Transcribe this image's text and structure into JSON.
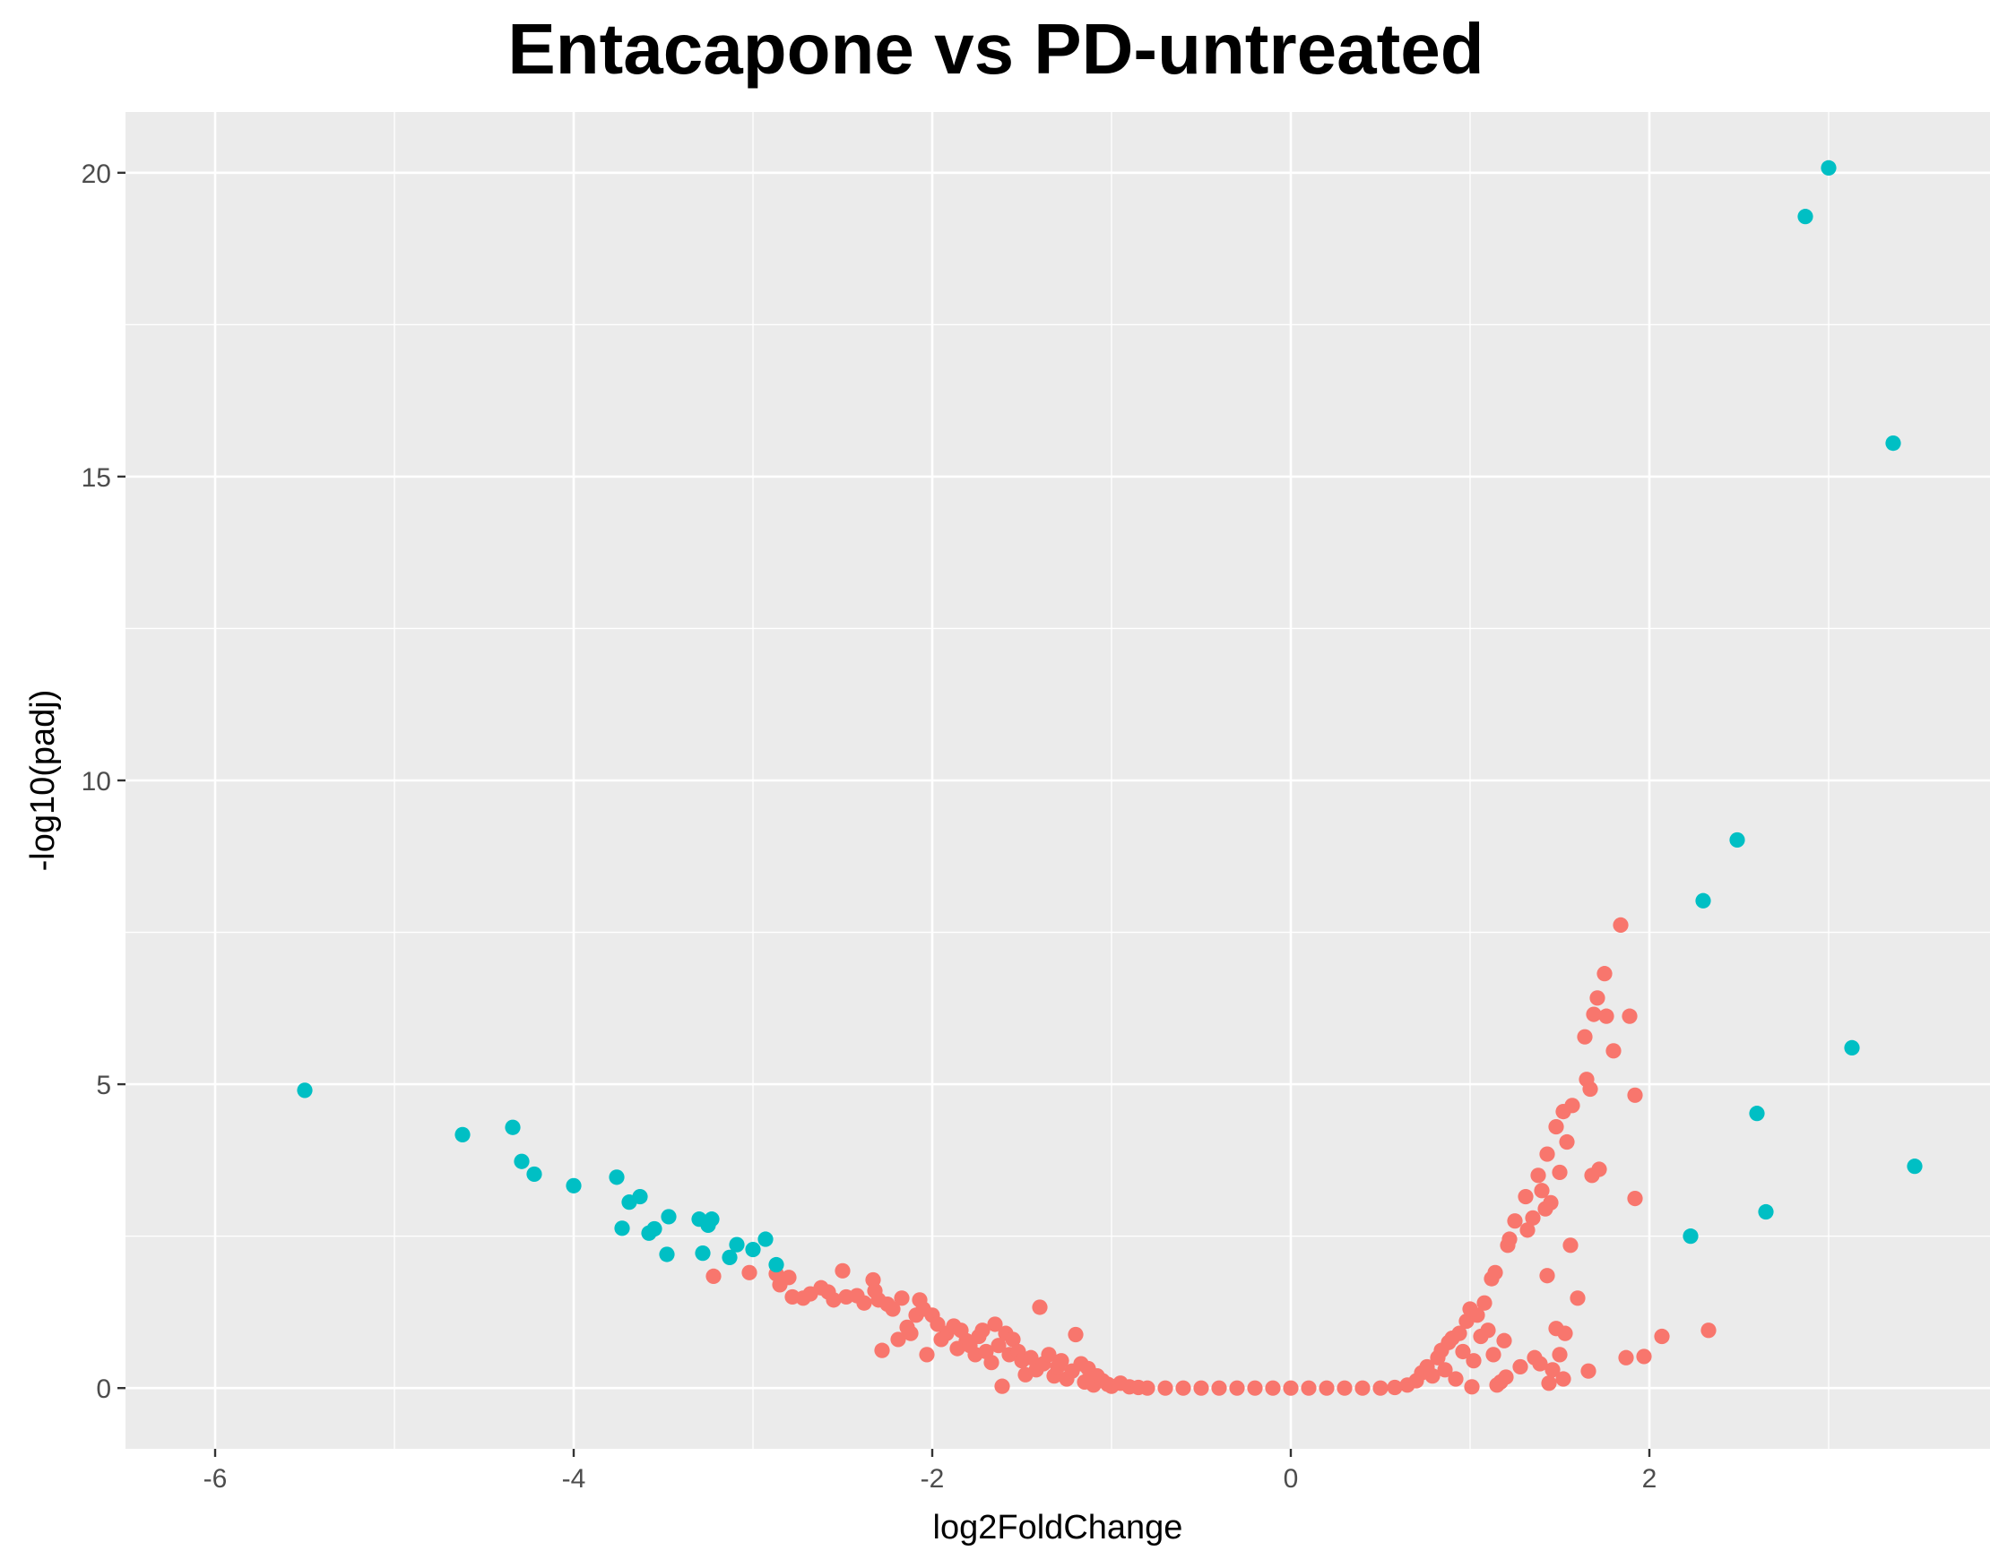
{
  "chart_data": {
    "type": "scatter",
    "title": "Entacapone vs PD-untreated",
    "xlabel": "log2FoldChange",
    "ylabel": "-log10(padj)",
    "xlim": [
      -6.5,
      3.9
    ],
    "ylim": [
      -1.0,
      21.0
    ],
    "xticks": [
      -6,
      -4,
      -2,
      0,
      2
    ],
    "xtick_labels": [
      "-6",
      "-4",
      "-2",
      "0",
      "2"
    ],
    "yticks": [
      0,
      5,
      10,
      15,
      20
    ],
    "ytick_labels": [
      "0",
      "5",
      "10",
      "15",
      "20"
    ],
    "grid": true,
    "legend": "none",
    "colors": {
      "panel": "#ebebeb",
      "grid": "#ffffff",
      "red": "#f8766d",
      "teal": "#00bfc4"
    },
    "series": [
      {
        "color": "#00bfc4",
        "points": [
          [
            -5.5,
            4.9
          ],
          [
            -4.62,
            4.17
          ],
          [
            -4.34,
            4.29
          ],
          [
            -4.29,
            3.73
          ],
          [
            -4.22,
            3.52
          ],
          [
            -4.0,
            3.33
          ],
          [
            -3.76,
            3.47
          ],
          [
            -3.73,
            2.63
          ],
          [
            -3.69,
            3.06
          ],
          [
            -3.63,
            3.15
          ],
          [
            -3.58,
            2.55
          ],
          [
            -3.55,
            2.62
          ],
          [
            -3.48,
            2.2
          ],
          [
            -3.47,
            2.82
          ],
          [
            -3.3,
            2.78
          ],
          [
            -3.28,
            2.22
          ],
          [
            -3.25,
            2.68
          ],
          [
            -3.23,
            2.78
          ],
          [
            -3.13,
            2.15
          ],
          [
            -3.09,
            2.36
          ],
          [
            -3.0,
            2.28
          ],
          [
            -2.93,
            2.45
          ],
          [
            -2.87,
            2.03
          ],
          [
            2.23,
            2.5
          ],
          [
            2.3,
            8.02
          ],
          [
            2.49,
            9.02
          ],
          [
            2.6,
            4.52
          ],
          [
            2.65,
            2.9
          ],
          [
            2.87,
            19.28
          ],
          [
            3.0,
            20.08
          ],
          [
            3.13,
            5.6
          ],
          [
            3.36,
            15.55
          ],
          [
            3.48,
            3.65
          ]
        ]
      },
      {
        "color": "#f8766d",
        "points": [
          [
            -3.22,
            1.84
          ],
          [
            -3.02,
            1.9
          ],
          [
            -2.87,
            1.88
          ],
          [
            -2.85,
            1.7
          ],
          [
            -2.8,
            1.82
          ],
          [
            -2.78,
            1.5
          ],
          [
            -2.72,
            1.48
          ],
          [
            -2.68,
            1.55
          ],
          [
            -2.62,
            1.65
          ],
          [
            -2.58,
            1.58
          ],
          [
            -2.55,
            1.45
          ],
          [
            -2.5,
            1.93
          ],
          [
            -2.48,
            1.5
          ],
          [
            -2.42,
            1.52
          ],
          [
            -2.38,
            1.4
          ],
          [
            -2.33,
            1.78
          ],
          [
            -2.32,
            1.6
          ],
          [
            -2.3,
            1.45
          ],
          [
            -2.28,
            0.62
          ],
          [
            -2.25,
            1.38
          ],
          [
            -2.22,
            1.3
          ],
          [
            -2.19,
            0.8
          ],
          [
            -2.17,
            1.48
          ],
          [
            -2.14,
            1.0
          ],
          [
            -2.12,
            0.9
          ],
          [
            -2.09,
            1.2
          ],
          [
            -2.07,
            1.45
          ],
          [
            -2.05,
            1.3
          ],
          [
            -2.03,
            0.55
          ],
          [
            -2.0,
            1.2
          ],
          [
            -1.97,
            1.05
          ],
          [
            -1.95,
            0.8
          ],
          [
            -1.92,
            0.9
          ],
          [
            -1.88,
            1.02
          ],
          [
            -1.86,
            0.65
          ],
          [
            -1.84,
            0.95
          ],
          [
            -1.81,
            0.78
          ],
          [
            -1.79,
            0.7
          ],
          [
            -1.76,
            0.55
          ],
          [
            -1.74,
            0.85
          ],
          [
            -1.72,
            0.95
          ],
          [
            -1.7,
            0.6
          ],
          [
            -1.67,
            0.42
          ],
          [
            -1.65,
            1.05
          ],
          [
            -1.63,
            0.7
          ],
          [
            -1.61,
            0.03
          ],
          [
            -1.59,
            0.9
          ],
          [
            -1.57,
            0.55
          ],
          [
            -1.55,
            0.8
          ],
          [
            -1.52,
            0.6
          ],
          [
            -1.5,
            0.45
          ],
          [
            -1.48,
            0.22
          ],
          [
            -1.45,
            0.5
          ],
          [
            -1.42,
            0.3
          ],
          [
            -1.4,
            1.33
          ],
          [
            -1.38,
            0.4
          ],
          [
            -1.35,
            0.55
          ],
          [
            -1.32,
            0.2
          ],
          [
            -1.3,
            0.35
          ],
          [
            -1.28,
            0.45
          ],
          [
            -1.25,
            0.15
          ],
          [
            -1.22,
            0.28
          ],
          [
            -1.2,
            0.88
          ],
          [
            -1.17,
            0.4
          ],
          [
            -1.15,
            0.1
          ],
          [
            -1.13,
            0.32
          ],
          [
            -1.1,
            0.05
          ],
          [
            -1.08,
            0.2
          ],
          [
            -1.05,
            0.12
          ],
          [
            -1.02,
            0.06
          ],
          [
            -1.0,
            0.03
          ],
          [
            -0.95,
            0.08
          ],
          [
            -0.9,
            0.02
          ],
          [
            -0.85,
            0.01
          ],
          [
            -0.8,
            0.0
          ],
          [
            -0.7,
            0.0
          ],
          [
            -0.6,
            0.0
          ],
          [
            -0.5,
            0.0
          ],
          [
            -0.4,
            0.0
          ],
          [
            -0.3,
            0.0
          ],
          [
            -0.2,
            0.0
          ],
          [
            -0.1,
            0.0
          ],
          [
            0.0,
            0.0
          ],
          [
            0.1,
            0.0
          ],
          [
            0.2,
            0.0
          ],
          [
            0.3,
            0.0
          ],
          [
            0.4,
            0.0
          ],
          [
            0.5,
            0.0
          ],
          [
            0.58,
            0.01
          ],
          [
            0.65,
            0.05
          ],
          [
            0.7,
            0.12
          ],
          [
            0.73,
            0.25
          ],
          [
            0.76,
            0.35
          ],
          [
            0.79,
            0.2
          ],
          [
            0.82,
            0.5
          ],
          [
            0.84,
            0.62
          ],
          [
            0.86,
            0.3
          ],
          [
            0.88,
            0.75
          ],
          [
            0.9,
            0.82
          ],
          [
            0.92,
            0.15
          ],
          [
            0.94,
            0.9
          ],
          [
            0.96,
            0.6
          ],
          [
            0.98,
            1.1
          ],
          [
            1.0,
            1.3
          ],
          [
            1.01,
            0.02
          ],
          [
            1.02,
            0.45
          ],
          [
            1.04,
            1.2
          ],
          [
            1.06,
            0.85
          ],
          [
            1.08,
            1.4
          ],
          [
            1.1,
            0.95
          ],
          [
            1.12,
            1.8
          ],
          [
            1.13,
            0.55
          ],
          [
            1.14,
            1.9
          ],
          [
            1.15,
            0.05
          ],
          [
            1.17,
            0.1
          ],
          [
            1.19,
            0.78
          ],
          [
            1.2,
            0.18
          ],
          [
            1.21,
            2.35
          ],
          [
            1.22,
            2.45
          ],
          [
            1.25,
            2.75
          ],
          [
            1.28,
            0.35
          ],
          [
            1.31,
            3.15
          ],
          [
            1.32,
            2.6
          ],
          [
            1.35,
            2.8
          ],
          [
            1.36,
            0.5
          ],
          [
            1.38,
            3.5
          ],
          [
            1.39,
            0.4
          ],
          [
            1.4,
            3.25
          ],
          [
            1.42,
            2.95
          ],
          [
            1.43,
            3.85
          ],
          [
            1.43,
            1.85
          ],
          [
            1.44,
            0.08
          ],
          [
            1.45,
            3.05
          ],
          [
            1.46,
            0.3
          ],
          [
            1.48,
            4.3
          ],
          [
            1.48,
            0.98
          ],
          [
            1.5,
            3.55
          ],
          [
            1.5,
            0.55
          ],
          [
            1.52,
            4.55
          ],
          [
            1.52,
            0.15
          ],
          [
            1.53,
            0.9
          ],
          [
            1.54,
            4.05
          ],
          [
            1.56,
            2.35
          ],
          [
            1.57,
            4.65
          ],
          [
            1.6,
            1.48
          ],
          [
            1.64,
            5.78
          ],
          [
            1.65,
            5.08
          ],
          [
            1.66,
            0.28
          ],
          [
            1.67,
            4.92
          ],
          [
            1.68,
            3.5
          ],
          [
            1.69,
            6.15
          ],
          [
            1.71,
            6.42
          ],
          [
            1.72,
            3.6
          ],
          [
            1.75,
            6.82
          ],
          [
            1.76,
            6.12
          ],
          [
            1.8,
            5.55
          ],
          [
            1.84,
            7.62
          ],
          [
            1.87,
            0.5
          ],
          [
            1.89,
            6.12
          ],
          [
            1.92,
            4.82
          ],
          [
            1.92,
            3.12
          ],
          [
            1.97,
            0.52
          ],
          [
            2.07,
            0.85
          ],
          [
            2.33,
            0.95
          ]
        ]
      }
    ]
  }
}
